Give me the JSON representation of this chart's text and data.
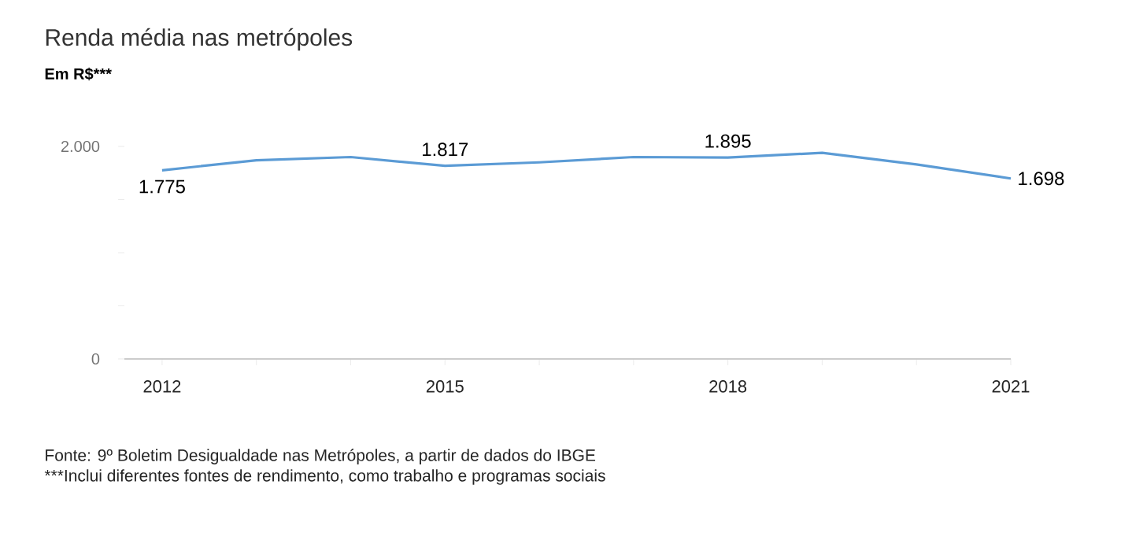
{
  "chart_data": {
    "type": "line",
    "title": "Renda média nas metrópoles",
    "subtitle": "Em R$***",
    "x": [
      2012,
      2013,
      2014,
      2015,
      2016,
      2017,
      2018,
      2019,
      2020,
      2021
    ],
    "values": [
      1775,
      1870,
      1900,
      1817,
      1850,
      1900,
      1895,
      1940,
      1830,
      1698
    ],
    "value_labels": [
      "1.775",
      null,
      null,
      "1.817",
      null,
      null,
      "1.895",
      null,
      null,
      "1.698"
    ],
    "color": "#5b9bd5",
    "xlim": [
      2011.6,
      2021
    ],
    "xticks": [
      2012,
      {
        "value": 2013,
        "label": null
      },
      {
        "value": 2014,
        "label": null
      },
      2015,
      {
        "value": 2016,
        "label": null
      },
      {
        "value": 2017,
        "label": null
      },
      2018,
      {
        "value": 2019,
        "label": null
      },
      {
        "value": 2020,
        "label": null
      },
      2021
    ],
    "ylim": [
      0,
      2000
    ],
    "yticks": [
      0,
      {
        "value": 500,
        "label": null
      },
      {
        "value": 1000,
        "label": null
      },
      {
        "value": 1500,
        "label": null
      },
      {
        "value": 2000,
        "label": "2.000"
      }
    ],
    "grid": false,
    "marker": "none",
    "line_style": "solid",
    "annotations": [
      "Fonte: 9º Boletim Desigualdade nas Metrópoles, a partir de dados do IBGE",
      "***Inclui diferentes fontes de rendimento, como trabalho e programas sociais"
    ]
  }
}
